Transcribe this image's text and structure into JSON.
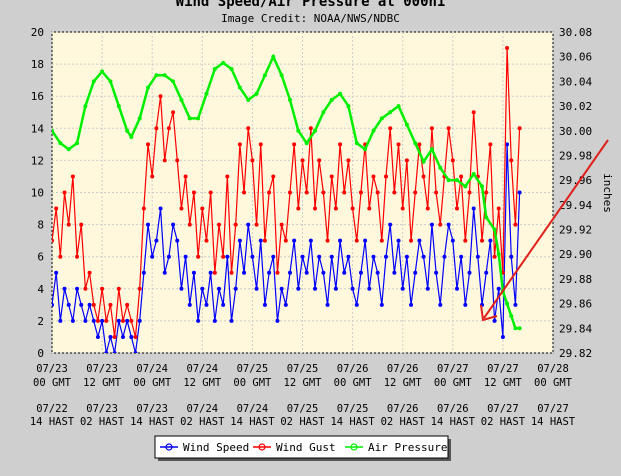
{
  "chart_data": {
    "type": "line",
    "title": "Wind Speed/Air Pressure at 000h1",
    "subtitle": "Image Credit: NOAA/NWS/NDBC",
    "ylabel_right": "inches",
    "y_left": {
      "min": 0,
      "max": 20,
      "ticks": [
        "0",
        "2",
        "4",
        "6",
        "8",
        "10",
        "12",
        "14",
        "16",
        "18",
        "20"
      ]
    },
    "y_right": {
      "min": 29.82,
      "max": 30.08,
      "ticks": [
        "29.82",
        "29.84",
        "29.86",
        "29.88",
        "29.90",
        "29.92",
        "29.94",
        "29.96",
        "29.98",
        "30.00",
        "30.02",
        "30.04",
        "30.06",
        "30.08"
      ]
    },
    "x_range_hours": [
      0,
      120
    ],
    "x_ticks": [
      {
        "gmt": [
          "07/23",
          "00 GMT"
        ],
        "hast": [
          "07/22",
          "14 HAST"
        ]
      },
      {
        "gmt": [
          "07/23",
          "12 GMT"
        ],
        "hast": [
          "07/23",
          "02 HAST"
        ]
      },
      {
        "gmt": [
          "07/24",
          "00 GMT"
        ],
        "hast": [
          "07/23",
          "14 HAST"
        ]
      },
      {
        "gmt": [
          "07/24",
          "12 GMT"
        ],
        "hast": [
          "07/24",
          "02 HAST"
        ]
      },
      {
        "gmt": [
          "07/25",
          "00 GMT"
        ],
        "hast": [
          "07/24",
          "14 HAST"
        ]
      },
      {
        "gmt": [
          "07/25",
          "12 GMT"
        ],
        "hast": [
          "07/25",
          "02 HAST"
        ]
      },
      {
        "gmt": [
          "07/26",
          "00 GMT"
        ],
        "hast": [
          "07/25",
          "14 HAST"
        ]
      },
      {
        "gmt": [
          "07/26",
          "12 GMT"
        ],
        "hast": [
          "07/26",
          "02 HAST"
        ]
      },
      {
        "gmt": [
          "07/27",
          "00 GMT"
        ],
        "hast": [
          "07/26",
          "14 HAST"
        ]
      },
      {
        "gmt": [
          "07/27",
          "12 GMT"
        ],
        "hast": [
          "07/27",
          "02 HAST"
        ]
      },
      {
        "gmt": [
          "07/28",
          "00 GMT"
        ],
        "hast": [
          "07/27",
          "14 HAST"
        ]
      }
    ],
    "series": [
      {
        "name": "Wind Speed",
        "axis": "left",
        "color": "#0000ff",
        "points": [
          [
            0,
            3
          ],
          [
            1,
            5
          ],
          [
            2,
            2
          ],
          [
            3,
            4
          ],
          [
            4,
            3
          ],
          [
            5,
            2
          ],
          [
            6,
            4
          ],
          [
            7,
            3
          ],
          [
            8,
            2
          ],
          [
            9,
            3
          ],
          [
            10,
            2
          ],
          [
            11,
            1
          ],
          [
            12,
            2
          ],
          [
            13,
            0
          ],
          [
            14,
            1
          ],
          [
            15,
            0
          ],
          [
            16,
            2
          ],
          [
            17,
            1
          ],
          [
            18,
            2
          ],
          [
            19,
            1
          ],
          [
            20,
            0
          ],
          [
            21,
            2
          ],
          [
            22,
            5
          ],
          [
            23,
            8
          ],
          [
            24,
            6
          ],
          [
            25,
            7
          ],
          [
            26,
            9
          ],
          [
            27,
            5
          ],
          [
            28,
            6
          ],
          [
            29,
            8
          ],
          [
            30,
            7
          ],
          [
            31,
            4
          ],
          [
            32,
            6
          ],
          [
            33,
            3
          ],
          [
            34,
            5
          ],
          [
            35,
            2
          ],
          [
            36,
            4
          ],
          [
            37,
            3
          ],
          [
            38,
            5
          ],
          [
            39,
            2
          ],
          [
            40,
            4
          ],
          [
            41,
            3
          ],
          [
            42,
            6
          ],
          [
            43,
            2
          ],
          [
            44,
            4
          ],
          [
            45,
            7
          ],
          [
            46,
            5
          ],
          [
            47,
            8
          ],
          [
            48,
            6
          ],
          [
            49,
            4
          ],
          [
            50,
            7
          ],
          [
            51,
            3
          ],
          [
            52,
            5
          ],
          [
            53,
            6
          ],
          [
            54,
            2
          ],
          [
            55,
            4
          ],
          [
            56,
            3
          ],
          [
            57,
            5
          ],
          [
            58,
            7
          ],
          [
            59,
            4
          ],
          [
            60,
            6
          ],
          [
            61,
            5
          ],
          [
            62,
            7
          ],
          [
            63,
            4
          ],
          [
            64,
            6
          ],
          [
            65,
            5
          ],
          [
            66,
            3
          ],
          [
            67,
            6
          ],
          [
            68,
            4
          ],
          [
            69,
            7
          ],
          [
            70,
            5
          ],
          [
            71,
            6
          ],
          [
            72,
            4
          ],
          [
            73,
            3
          ],
          [
            74,
            5
          ],
          [
            75,
            7
          ],
          [
            76,
            4
          ],
          [
            77,
            6
          ],
          [
            78,
            5
          ],
          [
            79,
            3
          ],
          [
            80,
            6
          ],
          [
            81,
            8
          ],
          [
            82,
            5
          ],
          [
            83,
            7
          ],
          [
            84,
            4
          ],
          [
            85,
            6
          ],
          [
            86,
            3
          ],
          [
            87,
            5
          ],
          [
            88,
            7
          ],
          [
            89,
            6
          ],
          [
            90,
            4
          ],
          [
            91,
            8
          ],
          [
            92,
            5
          ],
          [
            93,
            3
          ],
          [
            94,
            6
          ],
          [
            95,
            8
          ],
          [
            96,
            7
          ],
          [
            97,
            4
          ],
          [
            98,
            6
          ],
          [
            99,
            3
          ],
          [
            100,
            5
          ],
          [
            101,
            9
          ],
          [
            102,
            6
          ],
          [
            103,
            3
          ],
          [
            104,
            5
          ],
          [
            105,
            7
          ],
          [
            106,
            2
          ],
          [
            107,
            4
          ],
          [
            108,
            1
          ],
          [
            109,
            13
          ],
          [
            110,
            6
          ],
          [
            111,
            3
          ],
          [
            112,
            10
          ]
        ]
      },
      {
        "name": "Wind Gust",
        "axis": "left",
        "color": "#ff0000",
        "points": [
          [
            0,
            7
          ],
          [
            1,
            9
          ],
          [
            2,
            6
          ],
          [
            3,
            10
          ],
          [
            4,
            8
          ],
          [
            5,
            11
          ],
          [
            6,
            6
          ],
          [
            7,
            8
          ],
          [
            8,
            4
          ],
          [
            9,
            5
          ],
          [
            10,
            3
          ],
          [
            11,
            2
          ],
          [
            12,
            4
          ],
          [
            13,
            2
          ],
          [
            14,
            3
          ],
          [
            15,
            1
          ],
          [
            16,
            4
          ],
          [
            17,
            2
          ],
          [
            18,
            3
          ],
          [
            19,
            2
          ],
          [
            20,
            1
          ],
          [
            21,
            4
          ],
          [
            22,
            9
          ],
          [
            23,
            13
          ],
          [
            24,
            11
          ],
          [
            25,
            14
          ],
          [
            26,
            16
          ],
          [
            27,
            12
          ],
          [
            28,
            14
          ],
          [
            29,
            15
          ],
          [
            30,
            12
          ],
          [
            31,
            9
          ],
          [
            32,
            11
          ],
          [
            33,
            8
          ],
          [
            34,
            10
          ],
          [
            35,
            6
          ],
          [
            36,
            9
          ],
          [
            37,
            7
          ],
          [
            38,
            10
          ],
          [
            39,
            5
          ],
          [
            40,
            8
          ],
          [
            41,
            6
          ],
          [
            42,
            11
          ],
          [
            43,
            5
          ],
          [
            44,
            8
          ],
          [
            45,
            13
          ],
          [
            46,
            10
          ],
          [
            47,
            14
          ],
          [
            48,
            12
          ],
          [
            49,
            8
          ],
          [
            50,
            13
          ],
          [
            51,
            7
          ],
          [
            52,
            10
          ],
          [
            53,
            11
          ],
          [
            54,
            5
          ],
          [
            55,
            8
          ],
          [
            56,
            7
          ],
          [
            57,
            10
          ],
          [
            58,
            13
          ],
          [
            59,
            9
          ],
          [
            60,
            12
          ],
          [
            61,
            10
          ],
          [
            62,
            14
          ],
          [
            63,
            9
          ],
          [
            64,
            12
          ],
          [
            65,
            10
          ],
          [
            66,
            7
          ],
          [
            67,
            11
          ],
          [
            68,
            9
          ],
          [
            69,
            13
          ],
          [
            70,
            10
          ],
          [
            71,
            12
          ],
          [
            72,
            9
          ],
          [
            73,
            7
          ],
          [
            74,
            10
          ],
          [
            75,
            13
          ],
          [
            76,
            9
          ],
          [
            77,
            11
          ],
          [
            78,
            10
          ],
          [
            79,
            7
          ],
          [
            80,
            11
          ],
          [
            81,
            14
          ],
          [
            82,
            10
          ],
          [
            83,
            13
          ],
          [
            84,
            9
          ],
          [
            85,
            12
          ],
          [
            86,
            7
          ],
          [
            87,
            10
          ],
          [
            88,
            13
          ],
          [
            89,
            11
          ],
          [
            90,
            9
          ],
          [
            91,
            14
          ],
          [
            92,
            10
          ],
          [
            93,
            8
          ],
          [
            94,
            11
          ],
          [
            95,
            14
          ],
          [
            96,
            12
          ],
          [
            97,
            9
          ],
          [
            98,
            11
          ],
          [
            99,
            7
          ],
          [
            100,
            10
          ],
          [
            101,
            15
          ],
          [
            102,
            11
          ],
          [
            103,
            7
          ],
          [
            104,
            10
          ],
          [
            105,
            13
          ],
          [
            106,
            6
          ],
          [
            107,
            9
          ],
          [
            108,
            5
          ],
          [
            109,
            19
          ],
          [
            110,
            12
          ],
          [
            111,
            8
          ],
          [
            112,
            14
          ]
        ]
      },
      {
        "name": "Air Pressure",
        "axis": "right",
        "color": "#00ee00",
        "points": [
          [
            0,
            30.0
          ],
          [
            2,
            29.99
          ],
          [
            4,
            29.985
          ],
          [
            6,
            29.99
          ],
          [
            8,
            30.02
          ],
          [
            10,
            30.04
          ],
          [
            12,
            30.048
          ],
          [
            14,
            30.04
          ],
          [
            16,
            30.02
          ],
          [
            18,
            30.0
          ],
          [
            19,
            29.995
          ],
          [
            21,
            30.01
          ],
          [
            23,
            30.035
          ],
          [
            25,
            30.045
          ],
          [
            27,
            30.045
          ],
          [
            29,
            30.04
          ],
          [
            31,
            30.025
          ],
          [
            33,
            30.01
          ],
          [
            35,
            30.01
          ],
          [
            37,
            30.03
          ],
          [
            39,
            30.05
          ],
          [
            41,
            30.055
          ],
          [
            43,
            30.05
          ],
          [
            45,
            30.035
          ],
          [
            47,
            30.025
          ],
          [
            49,
            30.03
          ],
          [
            51,
            30.045
          ],
          [
            53,
            30.06
          ],
          [
            55,
            30.045
          ],
          [
            57,
            30.025
          ],
          [
            59,
            30.0
          ],
          [
            61,
            29.99
          ],
          [
            63,
            30.0
          ],
          [
            65,
            30.015
          ],
          [
            67,
            30.025
          ],
          [
            69,
            30.03
          ],
          [
            71,
            30.02
          ],
          [
            73,
            29.99
          ],
          [
            75,
            29.985
          ],
          [
            77,
            30.0
          ],
          [
            79,
            30.01
          ],
          [
            81,
            30.015
          ],
          [
            83,
            30.02
          ],
          [
            85,
            30.005
          ],
          [
            87,
            29.99
          ],
          [
            89,
            29.975
          ],
          [
            91,
            29.985
          ],
          [
            93,
            29.97
          ],
          [
            95,
            29.96
          ],
          [
            97,
            29.96
          ],
          [
            99,
            29.955
          ],
          [
            101,
            29.965
          ],
          [
            103,
            29.955
          ],
          [
            104,
            29.93
          ],
          [
            106,
            29.92
          ],
          [
            107,
            29.9
          ],
          [
            108,
            29.87
          ],
          [
            109,
            29.86
          ],
          [
            110,
            29.85
          ],
          [
            111,
            29.84
          ],
          [
            112,
            29.84
          ]
        ]
      }
    ],
    "legend": {
      "placement": "bottom"
    },
    "grid": true
  },
  "colors": {
    "plot_bg": "#fff8dc",
    "page_bg": "#cfcfcf",
    "grid": "#cccccc",
    "arrow": "#e0201c"
  },
  "annotation": {
    "type": "arrow",
    "color": "#e0201c",
    "description_hidden": ""
  }
}
